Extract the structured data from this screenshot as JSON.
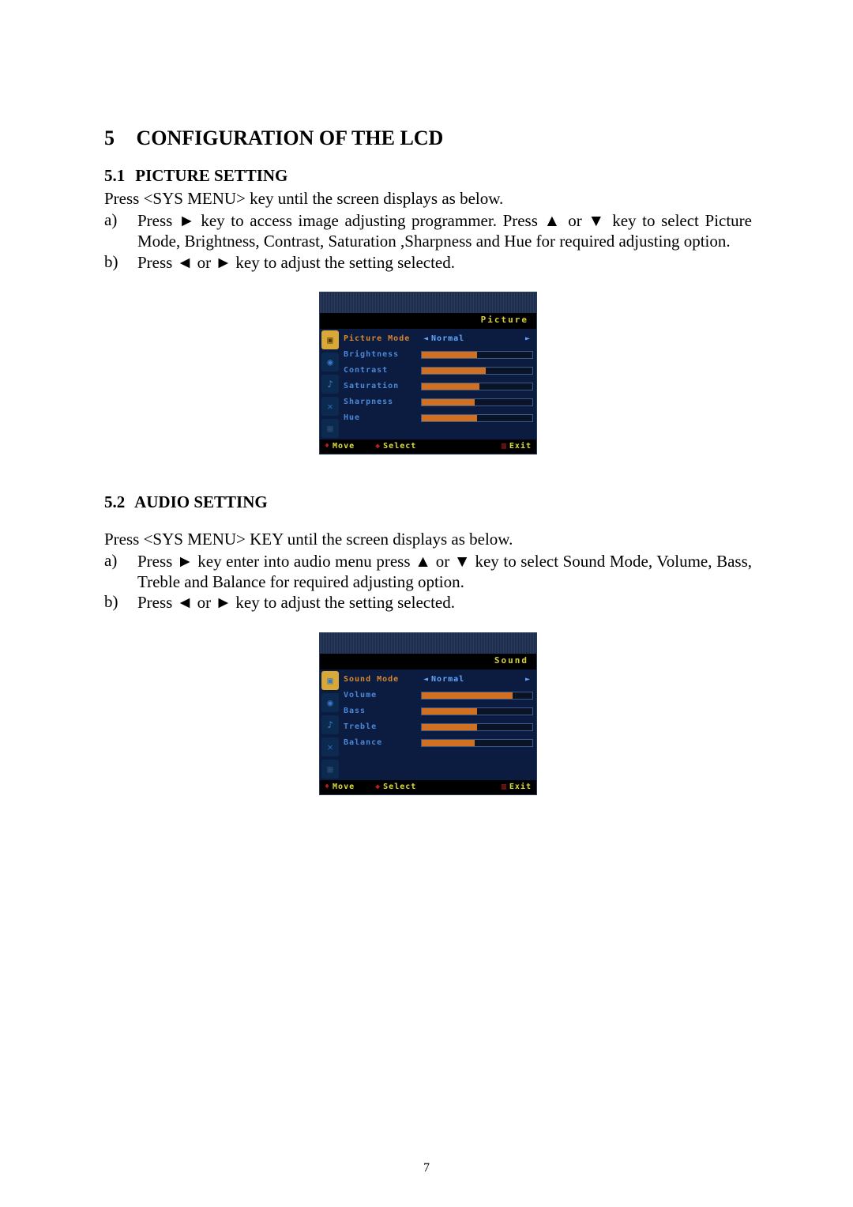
{
  "page_number": "7",
  "chapter": {
    "number": "5",
    "title": "CONFIGURATION OF THE LCD"
  },
  "section_5_1": {
    "number": "5.1",
    "title": "PICTURE SETTING",
    "intro": "Press <SYS MENU> key until the screen displays as below.",
    "step_a_marker": "a)",
    "step_a": "Press ► key to access image adjusting programmer. Press ▲ or ▼ key to select Picture Mode, Brightness, Contrast, Saturation ,Sharpness and Hue for required adjusting option.",
    "step_b_marker": "b)",
    "step_b": "Press ◄ or ► key to adjust the setting selected."
  },
  "picture_menu": {
    "header": "Picture",
    "icon_colors": [
      "#d8a838",
      "#0c2a50",
      "#0c2a50",
      "#0c2a50",
      "#0c2a50"
    ],
    "icon_glyphs": [
      "▣",
      "◉",
      "♪",
      "✕",
      "▦"
    ],
    "icon_fg": [
      "#5a3a00",
      "#3878c8",
      "#4a88c8",
      "#2a6ab0",
      "#2a4a70"
    ],
    "rows": [
      {
        "label": "Picture Mode",
        "label_color": "#d88830",
        "mode_value": "Normal"
      },
      {
        "label": "Brightness",
        "label_color": "#4a88d8",
        "bar_pct": 50
      },
      {
        "label": "Contrast",
        "label_color": "#4a88d8",
        "bar_pct": 58
      },
      {
        "label": "Saturation",
        "label_color": "#4a88d8",
        "bar_pct": 52
      },
      {
        "label": "Sharpness",
        "label_color": "#4a88d8",
        "bar_pct": 48
      },
      {
        "label": "Hue",
        "label_color": "#4a88d8",
        "bar_pct": 50
      }
    ],
    "footer": {
      "move": "Move",
      "select": "Select",
      "exit": "Exit"
    }
  },
  "section_5_2": {
    "number": "5.2",
    "title": "AUDIO SETTING",
    "intro": "Press <SYS MENU> KEY until the screen displays as below.",
    "step_a_marker": "a)",
    "step_a": "Press ► key enter into audio menu press ▲ or ▼ key to select Sound Mode, Volume, Bass, Treble and Balance for required adjusting option.",
    "step_b_marker": "b)",
    "step_b": "Press ◄ or ► key to adjust the setting selected."
  },
  "sound_menu": {
    "header": "Sound",
    "icon_colors": [
      "#d8a838",
      "#0c2a50",
      "#0c2a50",
      "#0c2a50",
      "#0c2a50"
    ],
    "icon_glyphs": [
      "▣",
      "◉",
      "♪",
      "✕",
      "▦"
    ],
    "icon_fg": [
      "#3a78b8",
      "#3878c8",
      "#4a88c8",
      "#2a6ab0",
      "#2a4a70"
    ],
    "rows": [
      {
        "label": "Sound Mode",
        "label_color": "#d88830",
        "mode_value": "Normal"
      },
      {
        "label": "Volume",
        "label_color": "#4a88d8",
        "bar_pct": 82
      },
      {
        "label": "Bass",
        "label_color": "#4a88d8",
        "bar_pct": 50
      },
      {
        "label": "Treble",
        "label_color": "#4a88d8",
        "bar_pct": 50
      },
      {
        "label": "Balance",
        "label_color": "#4a88d8",
        "bar_pct": 48
      }
    ],
    "footer": {
      "move": "Move",
      "select": "Select",
      "exit": "Exit"
    }
  }
}
